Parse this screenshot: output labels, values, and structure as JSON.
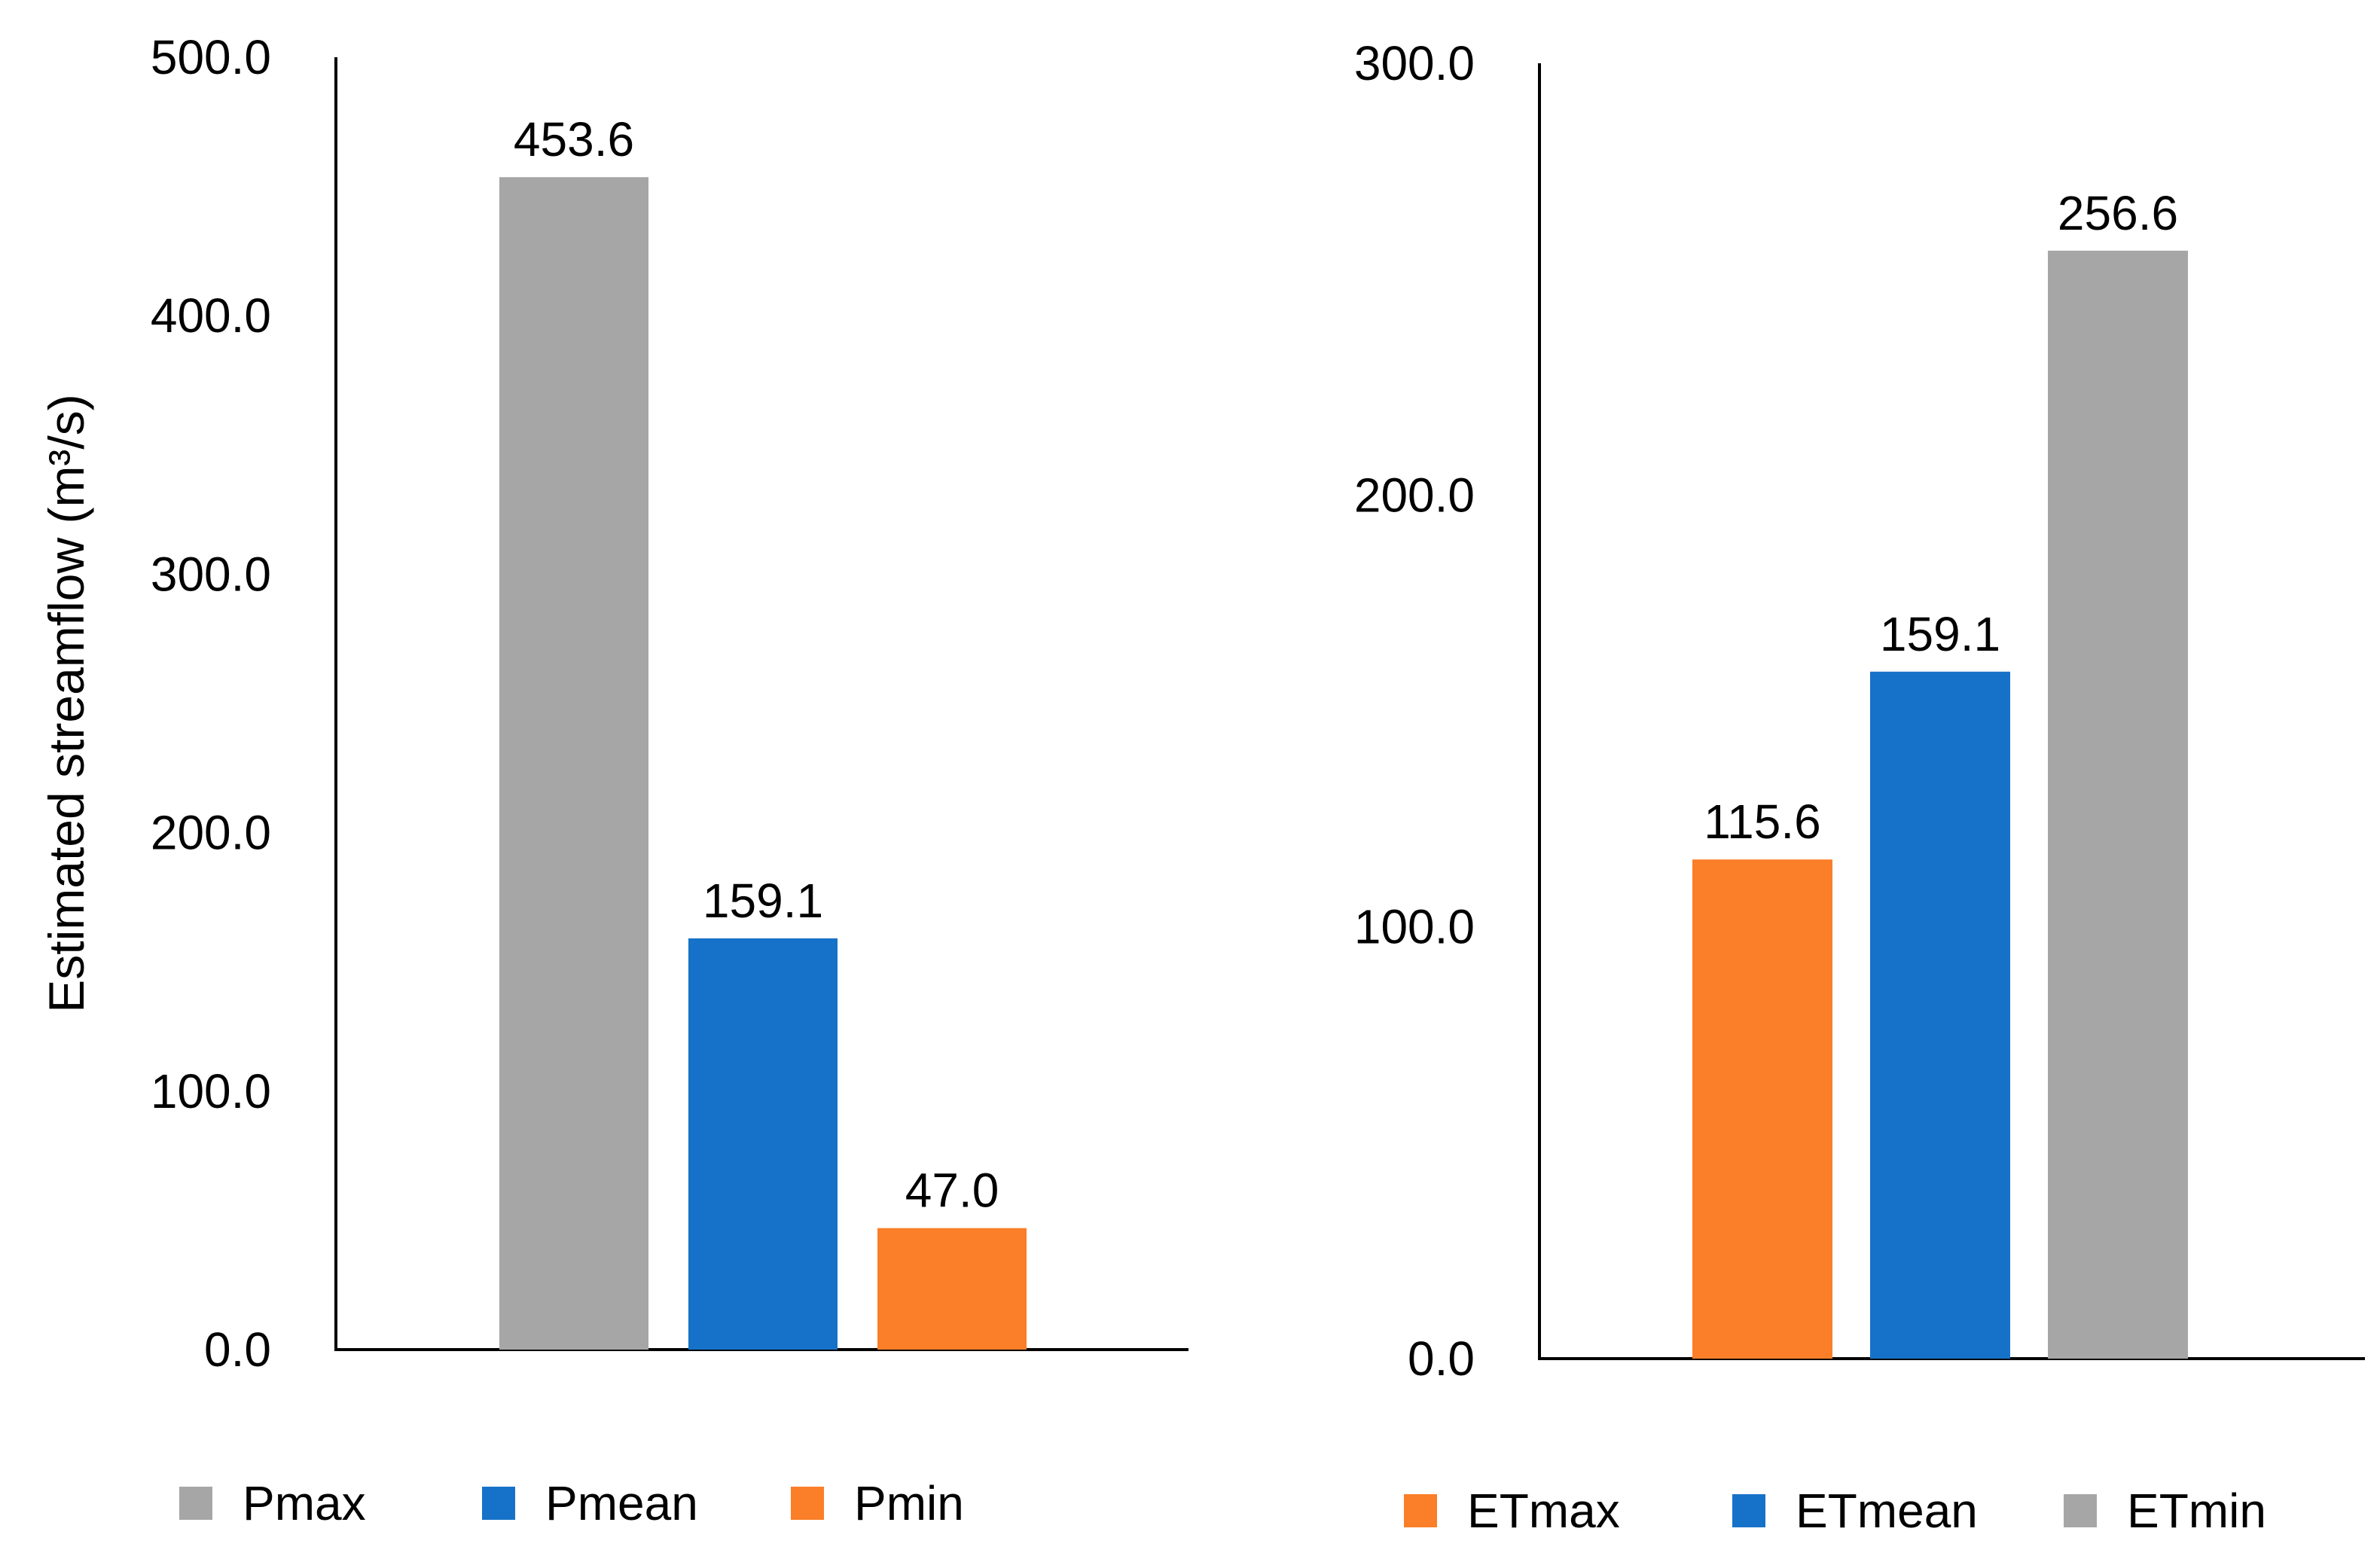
{
  "chart_data": [
    {
      "type": "bar",
      "ylabel": "Estimated streamflow (m³/s)",
      "ylim": [
        0,
        500
      ],
      "yticks": [
        0,
        100,
        200,
        300,
        400,
        500
      ],
      "ytick_labels": [
        "0.0",
        "100.0",
        "200.0",
        "300.0",
        "400.0",
        "500.0"
      ],
      "grid": false,
      "legend_position": "bottom",
      "categories": [
        "Pmax",
        "Pmean",
        "Pmin"
      ],
      "values": [
        453.6,
        159.1,
        47.0
      ],
      "value_labels": [
        "453.6",
        "159.1",
        "47.0"
      ],
      "colors": [
        "#A6A6A6",
        "#1672C8",
        "#FB7E28"
      ]
    },
    {
      "type": "bar",
      "ylabel": "",
      "ylim": [
        0,
        300
      ],
      "yticks": [
        0,
        100,
        200,
        300
      ],
      "ytick_labels": [
        "0.0",
        "100.0",
        "200.0",
        "300.0"
      ],
      "grid": false,
      "legend_position": "bottom",
      "categories": [
        "ETmax",
        "ETmean",
        "ETmin"
      ],
      "values": [
        115.6,
        159.1,
        256.6
      ],
      "value_labels": [
        "115.6",
        "159.1",
        "256.6"
      ],
      "colors": [
        "#FB7E28",
        "#1672C8",
        "#A6A6A6"
      ]
    }
  ]
}
